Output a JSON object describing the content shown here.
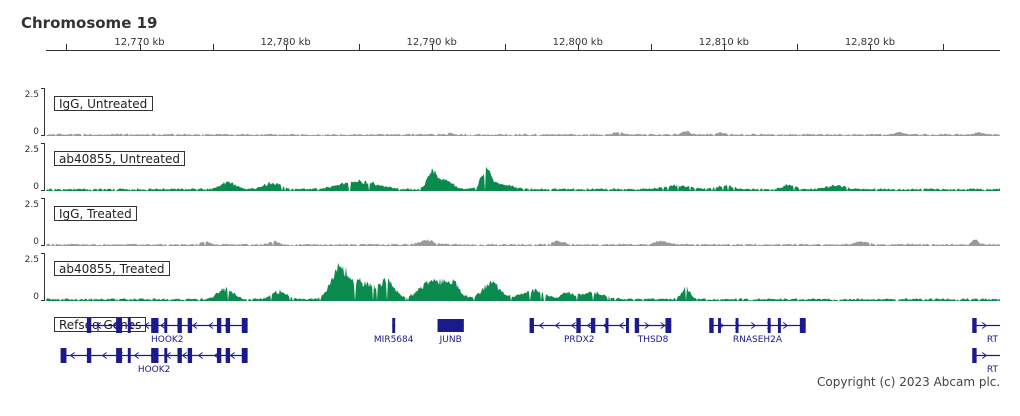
{
  "title": "Chromosome 19",
  "copyright": "Copyright (c) 2023 Abcam plc.",
  "colors": {
    "igg_track": "#999999",
    "chip_track": "#0b8a4e",
    "gene": "#1a1a8c",
    "axis": "#333333"
  },
  "chart_data": {
    "type": "area",
    "x_unit": "kb",
    "xlim": [
      12763.6,
      12828.9
    ],
    "ruler_ticks": [
      {
        "kb": 12770,
        "label": "12,770 kb"
      },
      {
        "kb": 12780,
        "label": "12,780 kb"
      },
      {
        "kb": 12790,
        "label": "12,790 kb"
      },
      {
        "kb": 12800,
        "label": "12,800 kb"
      },
      {
        "kb": 12810,
        "label": "12,810 kb"
      },
      {
        "kb": 12820,
        "label": "12,820 kb"
      }
    ],
    "ylim": [
      0,
      2.5
    ],
    "y_tick_labels": [
      "2.5",
      "0"
    ],
    "tracks": [
      {
        "name": "IgG,  Untreated",
        "color": "#999999",
        "baseline": 0.1,
        "peaks": [
          [
            12791.3,
            0.1,
            0.12
          ],
          [
            12802.8,
            0.3,
            0.15
          ],
          [
            12807.4,
            0.3,
            0.17
          ],
          [
            12809.8,
            0.3,
            0.1
          ],
          [
            12822.0,
            0.3,
            0.12
          ],
          [
            12827.5,
            0.3,
            0.1
          ]
        ]
      },
      {
        "name": "ab40855,  Untreated",
        "color": "#0b8a4e",
        "baseline": 0.12,
        "peaks": [
          [
            12776.1,
            0.5,
            0.35
          ],
          [
            12779.1,
            0.6,
            0.3
          ],
          [
            12785.0,
            1.2,
            0.4
          ],
          [
            12790.0,
            0.3,
            0.9
          ],
          [
            12790.9,
            0.5,
            0.45
          ],
          [
            12793.7,
            0.3,
            0.85
          ],
          [
            12794.5,
            0.8,
            0.3
          ],
          [
            12806.8,
            0.8,
            0.2
          ],
          [
            12810.0,
            0.5,
            0.2
          ],
          [
            12814.5,
            0.4,
            0.22
          ],
          [
            12817.6,
            0.6,
            0.2
          ]
        ]
      },
      {
        "name": "IgG, Treated",
        "color": "#999999",
        "baseline": 0.1,
        "peaks": [
          [
            12774.5,
            0.3,
            0.15
          ],
          [
            12779.2,
            0.3,
            0.18
          ],
          [
            12789.7,
            0.5,
            0.2
          ],
          [
            12798.7,
            0.4,
            0.18
          ],
          [
            12805.7,
            0.4,
            0.18
          ],
          [
            12819.5,
            0.5,
            0.15
          ],
          [
            12827.2,
            0.2,
            0.25
          ]
        ]
      },
      {
        "name": "ab40855, Treated",
        "color": "#0b8a4e",
        "baseline": 0.12,
        "peaks": [
          [
            12775.9,
            0.5,
            0.55
          ],
          [
            12779.6,
            0.5,
            0.4
          ],
          [
            12783.6,
            0.5,
            1.25
          ],
          [
            12785.0,
            1.0,
            0.9
          ],
          [
            12787.0,
            0.5,
            0.8
          ],
          [
            12790.0,
            0.8,
            0.9
          ],
          [
            12791.4,
            0.5,
            0.75
          ],
          [
            12794.1,
            0.6,
            0.8
          ],
          [
            12796.9,
            0.8,
            0.45
          ],
          [
            12801.0,
            0.8,
            0.35
          ],
          [
            12807.4,
            0.3,
            0.55
          ],
          [
            12799.3,
            0.4,
            0.3
          ]
        ]
      }
    ],
    "gene_track": {
      "name": "Refseq Genes",
      "rows": [
        [
          {
            "label": "HOOK2",
            "start": 12766.4,
            "end": 12777.4,
            "strand": "-",
            "exons": [
              [
                12766.4,
                12766.7
              ],
              [
                12768.4,
                12768.8
              ],
              [
                12769.2,
                12769.4
              ],
              [
                12770.8,
                12771.3
              ],
              [
                12771.7,
                12771.9
              ],
              [
                12772.6,
                12772.9
              ],
              [
                12773.3,
                12773.6
              ],
              [
                12775.3,
                12775.6
              ],
              [
                12775.9,
                12776.2
              ],
              [
                12777.0,
                12777.4
              ]
            ]
          },
          {
            "label": "MIR5684",
            "start": 12787.3,
            "end": 12787.5,
            "strand": "-",
            "exons": [
              [
                12787.3,
                12787.5
              ]
            ]
          },
          {
            "label": "JUNB",
            "start": 12790.4,
            "end": 12792.2,
            "strand": "+",
            "exons": [
              [
                12790.4,
                12792.2
              ]
            ]
          },
          {
            "label": "PRDX2",
            "start": 12796.7,
            "end": 12803.5,
            "strand": "-",
            "exons": [
              [
                12796.7,
                12797.0
              ],
              [
                12799.9,
                12800.2
              ],
              [
                12800.9,
                12801.2
              ],
              [
                12801.9,
                12802.1
              ],
              [
                12803.3,
                12803.5
              ]
            ]
          },
          {
            "label": "THSD8",
            "start": 12803.9,
            "end": 12806.4,
            "strand": "+",
            "exons": [
              [
                12803.9,
                12804.2
              ],
              [
                12806.0,
                12806.4
              ]
            ]
          },
          {
            "label": "RNASEH2A",
            "start": 12809.0,
            "end": 12815.6,
            "strand": "+",
            "exons": [
              [
                12809.0,
                12809.3
              ],
              [
                12809.6,
                12809.8
              ],
              [
                12810.8,
                12811.0
              ],
              [
                12813.0,
                12813.2
              ],
              [
                12813.7,
                12813.9
              ],
              [
                12815.2,
                12815.6
              ]
            ]
          },
          {
            "label": "RT",
            "start": 12827.0,
            "end": 12828.9,
            "strand": "+",
            "exons": [
              [
                12827.0,
                12827.3
              ]
            ]
          }
        ],
        [
          {
            "label": "HOOK2",
            "start": 12764.6,
            "end": 12777.4,
            "strand": "-",
            "exons": [
              [
                12764.6,
                12765.0
              ],
              [
                12766.4,
                12766.7
              ],
              [
                12768.4,
                12768.8
              ],
              [
                12769.2,
                12769.4
              ],
              [
                12770.8,
                12771.3
              ],
              [
                12771.7,
                12771.9
              ],
              [
                12772.6,
                12772.9
              ],
              [
                12773.3,
                12773.6
              ],
              [
                12775.3,
                12775.6
              ],
              [
                12775.9,
                12776.2
              ],
              [
                12777.0,
                12777.4
              ]
            ]
          },
          {
            "label": "RT",
            "start": 12827.0,
            "end": 12828.9,
            "strand": "+",
            "exons": [
              [
                12827.0,
                12827.3
              ]
            ]
          }
        ]
      ]
    }
  }
}
